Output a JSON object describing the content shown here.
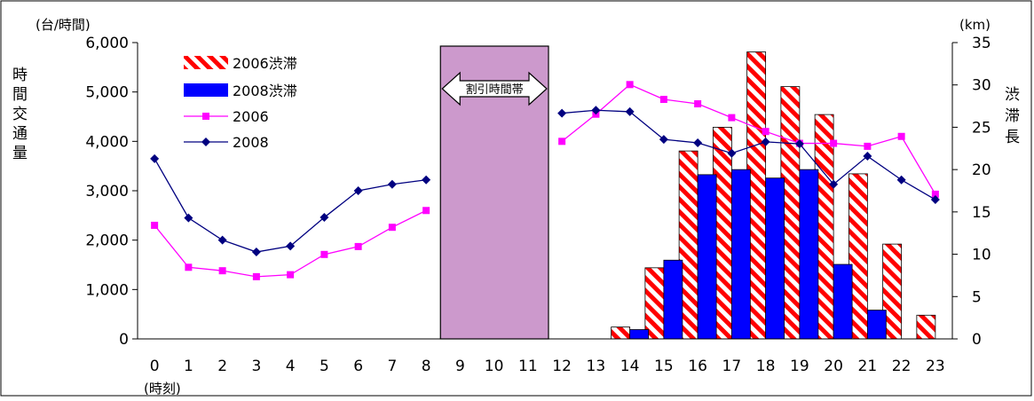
{
  "chart_data": {
    "type": "bar",
    "title": "",
    "y_unit_left": "(台/時間)",
    "y_unit_right": "(km)",
    "x_unit": "(時刻)",
    "ylabel_left": "時間交通量",
    "ylabel_right": "渋滞長",
    "categories": [
      "0",
      "1",
      "2",
      "3",
      "4",
      "5",
      "6",
      "7",
      "8",
      "9",
      "10",
      "11",
      "12",
      "13",
      "14",
      "15",
      "16",
      "17",
      "18",
      "19",
      "20",
      "21",
      "22",
      "23"
    ],
    "ylim_left": [
      0,
      6000
    ],
    "yticks_left": [
      "0",
      "1,000",
      "2,000",
      "3,000",
      "4,000",
      "5,000",
      "6,000"
    ],
    "ylim_right": [
      0,
      35
    ],
    "yticks_right": [
      "0",
      "5",
      "10",
      "15",
      "20",
      "25",
      "30",
      "35"
    ],
    "shaded_band": {
      "label": "割引時間帯",
      "from": "9",
      "to": "11",
      "color": "#cc99cc"
    },
    "bar_series": [
      {
        "name": "2006渋滞",
        "axis": "right",
        "color": "#ff0000",
        "pattern": "red-white-diagonal-stripes",
        "values": [
          0,
          0,
          0,
          0,
          0,
          0,
          0,
          0,
          0,
          0,
          0,
          0,
          0,
          0,
          1.4,
          8.4,
          22.2,
          25.0,
          33.9,
          29.8,
          26.5,
          19.5,
          11.2,
          2.8
        ]
      },
      {
        "name": "2008渋滞",
        "axis": "right",
        "color": "#0000ff",
        "pattern": "solid",
        "values": [
          0,
          0,
          0,
          0,
          0,
          0,
          0,
          0,
          0,
          0,
          0,
          0,
          0,
          0,
          1.1,
          9.3,
          19.4,
          20.0,
          19.0,
          20.0,
          8.8,
          3.4,
          0,
          0
        ]
      }
    ],
    "line_series": [
      {
        "name": "2006",
        "axis": "left",
        "color": "#ff00ff",
        "marker": "square",
        "values": [
          2300,
          1450,
          1380,
          1260,
          1300,
          1710,
          1870,
          2260,
          2600,
          null,
          null,
          null,
          4000,
          4550,
          5150,
          4850,
          4760,
          4480,
          4200,
          3960,
          3960,
          3900,
          4100,
          2930
        ]
      },
      {
        "name": "2008",
        "axis": "left",
        "color": "#000080",
        "marker": "diamond",
        "values": [
          3650,
          2450,
          2000,
          1760,
          1880,
          2460,
          3000,
          3130,
          3220,
          null,
          null,
          null,
          4570,
          4630,
          4600,
          4040,
          3970,
          3760,
          3990,
          3950,
          3130,
          3700,
          3220,
          2820
        ]
      }
    ],
    "legend_position": "top-left",
    "grid": false
  }
}
